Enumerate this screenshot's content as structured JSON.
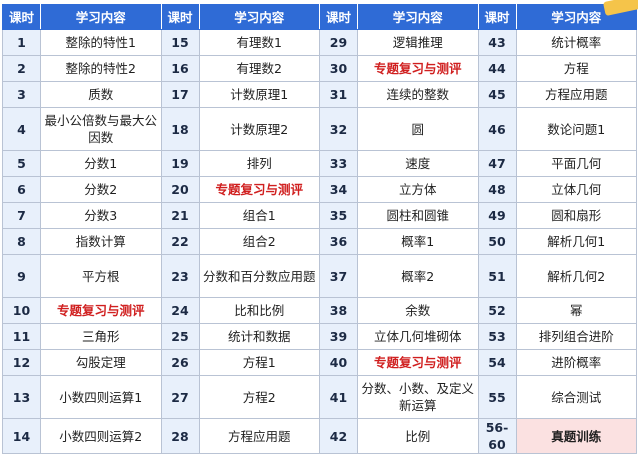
{
  "headers": [
    "课时",
    "学习内容",
    "课时",
    "学习内容",
    "课时",
    "学习内容",
    "课时",
    "学习内容"
  ],
  "rows": [
    {
      "h": 1,
      "cells": [
        {
          "n": "1",
          "t": "整除的特性1"
        },
        {
          "n": "15",
          "t": "有理数1"
        },
        {
          "n": "29",
          "t": "逻辑推理"
        },
        {
          "n": "43",
          "t": "统计概率"
        }
      ]
    },
    {
      "h": 1,
      "cells": [
        {
          "n": "2",
          "t": "整除的特性2"
        },
        {
          "n": "16",
          "t": "有理数2"
        },
        {
          "n": "30",
          "t": "专题复习与测评",
          "red": true
        },
        {
          "n": "44",
          "t": "方程"
        }
      ]
    },
    {
      "h": 1,
      "cells": [
        {
          "n": "3",
          "t": "质数"
        },
        {
          "n": "17",
          "t": "计数原理1"
        },
        {
          "n": "31",
          "t": "连续的整数"
        },
        {
          "n": "45",
          "t": "方程应用题"
        }
      ]
    },
    {
      "h": 2,
      "cells": [
        {
          "n": "4",
          "t": "最小公倍数与最大公因数"
        },
        {
          "n": "18",
          "t": "计数原理2"
        },
        {
          "n": "32",
          "t": "圆"
        },
        {
          "n": "46",
          "t": "数论问题1"
        }
      ]
    },
    {
      "h": 1,
      "cells": [
        {
          "n": "5",
          "t": "分数1"
        },
        {
          "n": "19",
          "t": "排列"
        },
        {
          "n": "33",
          "t": "速度"
        },
        {
          "n": "47",
          "t": "平面几何"
        }
      ]
    },
    {
      "h": 1,
      "cells": [
        {
          "n": "6",
          "t": "分数2"
        },
        {
          "n": "20",
          "t": "专题复习与测评",
          "red": true
        },
        {
          "n": "34",
          "t": "立方体"
        },
        {
          "n": "48",
          "t": "立体几何"
        }
      ]
    },
    {
      "h": 1,
      "cells": [
        {
          "n": "7",
          "t": "分数3"
        },
        {
          "n": "21",
          "t": "组合1"
        },
        {
          "n": "35",
          "t": "圆柱和圆锥"
        },
        {
          "n": "49",
          "t": "圆和扇形"
        }
      ]
    },
    {
      "h": 1,
      "cells": [
        {
          "n": "8",
          "t": "指数计算"
        },
        {
          "n": "22",
          "t": "组合2"
        },
        {
          "n": "36",
          "t": "概率1"
        },
        {
          "n": "50",
          "t": "解析几何1"
        }
      ]
    },
    {
      "h": 2,
      "cells": [
        {
          "n": "9",
          "t": "平方根"
        },
        {
          "n": "23",
          "t": "分数和百分数应用题"
        },
        {
          "n": "37",
          "t": "概率2"
        },
        {
          "n": "51",
          "t": "解析几何2"
        }
      ]
    },
    {
      "h": 1,
      "cells": [
        {
          "n": "10",
          "t": "专题复习与测评",
          "red": true
        },
        {
          "n": "24",
          "t": "比和比例"
        },
        {
          "n": "38",
          "t": "余数"
        },
        {
          "n": "52",
          "t": "幂"
        }
      ]
    },
    {
      "h": 1,
      "cells": [
        {
          "n": "11",
          "t": "三角形"
        },
        {
          "n": "25",
          "t": "统计和数据"
        },
        {
          "n": "39",
          "t": "立体几何堆砌体"
        },
        {
          "n": "53",
          "t": "排列组合进阶"
        }
      ]
    },
    {
      "h": 1,
      "cells": [
        {
          "n": "12",
          "t": "勾股定理"
        },
        {
          "n": "26",
          "t": "方程1"
        },
        {
          "n": "40",
          "t": "专题复习与测评",
          "red": true
        },
        {
          "n": "54",
          "t": "进阶概率"
        }
      ]
    },
    {
      "h": 2,
      "cells": [
        {
          "n": "13",
          "t": "小数四则运算1"
        },
        {
          "n": "27",
          "t": "方程2"
        },
        {
          "n": "41",
          "t": "分数、小数、及定义新运算"
        },
        {
          "n": "55",
          "t": "综合测试"
        }
      ]
    },
    {
      "h": 1,
      "cells": [
        {
          "n": "14",
          "t": "小数四则运算2"
        },
        {
          "n": "28",
          "t": "方程应用题"
        },
        {
          "n": "42",
          "t": "比例"
        },
        {
          "n": "56-60",
          "t": "真题训练",
          "pink": true
        }
      ]
    }
  ],
  "colors": {
    "header_bg": "#2f6bd6",
    "num_bg": "#e8f0fb",
    "highlight_red": "#d01f1f",
    "pink_bg": "#fbe1e1"
  }
}
